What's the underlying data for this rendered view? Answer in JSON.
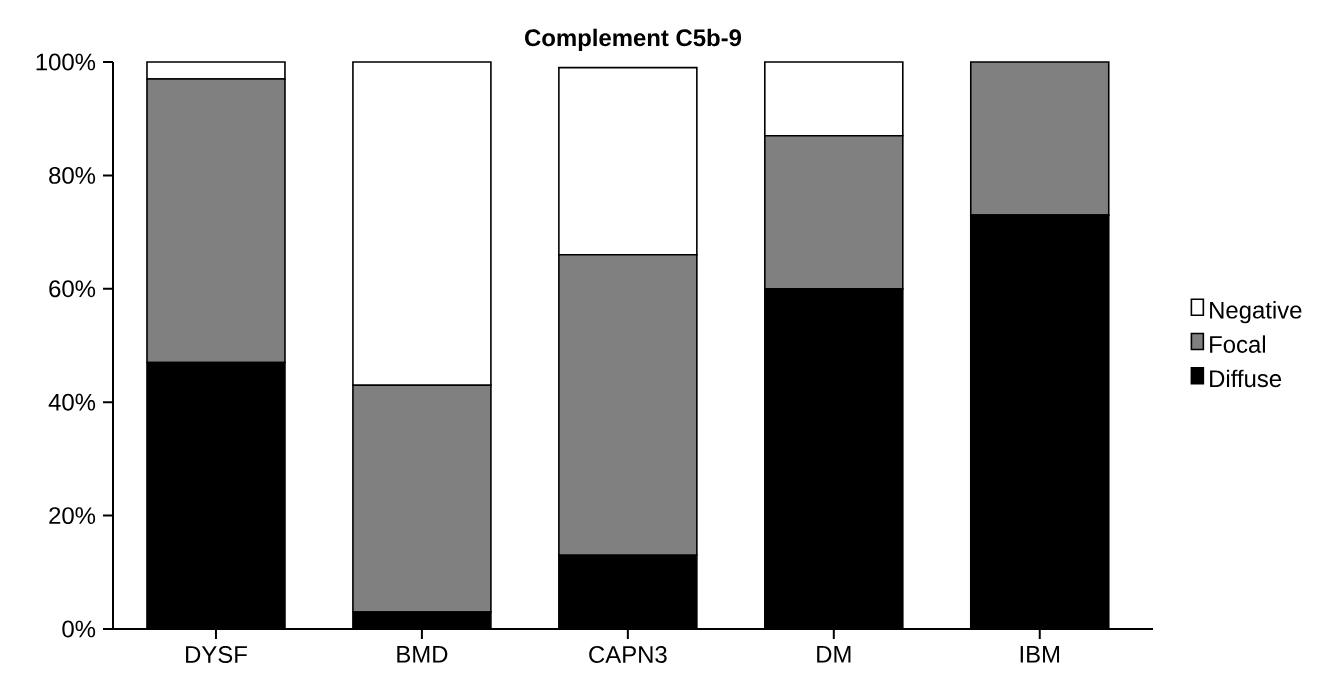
{
  "chart_data": {
    "type": "bar",
    "title": "Complement C5b-9",
    "categories": [
      "DYSF",
      "BMD",
      "CAPN3",
      "DM",
      "IBM"
    ],
    "series": [
      {
        "name": "Diffuse",
        "color": "#000000",
        "values": [
          47,
          3,
          13,
          60,
          73
        ]
      },
      {
        "name": "Focal",
        "color": "#808080",
        "values": [
          50,
          40,
          53,
          27,
          27
        ]
      },
      {
        "name": "Negative",
        "color": "#ffffff",
        "values": [
          3,
          57,
          33,
          13,
          0
        ]
      }
    ],
    "stacked": true,
    "ylim": [
      0,
      100
    ],
    "yticks": [
      {
        "value": 0,
        "label": "0%"
      },
      {
        "value": 20,
        "label": "20%"
      },
      {
        "value": 40,
        "label": "40%"
      },
      {
        "value": 60,
        "label": "60%"
      },
      {
        "value": 80,
        "label": "80%"
      },
      {
        "value": 100,
        "label": "100%"
      }
    ],
    "legend": "right"
  }
}
